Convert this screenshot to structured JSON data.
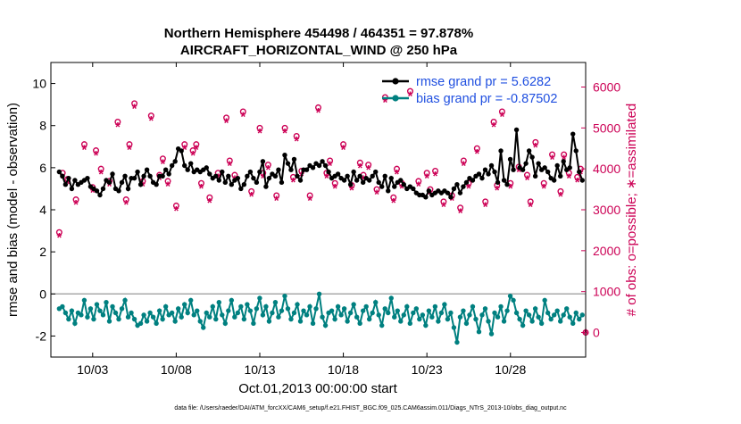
{
  "chart_data": {
    "type": "line",
    "title_line1": "Northern Hemisphere 454498 / 464351 = 97.878%",
    "title_line2": "AIRCRAFT_HORIZONTAL_WIND @ 250 hPa",
    "xlabel": "Oct.01,2013 00:00:00 start",
    "ylabel_left": "rmse and bias (model - observation)",
    "ylabel_right": "# of obs: o=possible; ∗=assimilated",
    "footer": "data file: /Users/raeder/DAI/ATM_forcXX/CAM6_setup/f.e21.FHIST_BGC.f09_025.CAM6assim.011/Diags_NTrS_2013-10/obs_diag_output.nc",
    "xlim": [
      0.5,
      32.5
    ],
    "ylim_left": [
      -3,
      11
    ],
    "ylim_right": [
      -600,
      6600
    ],
    "x_ticks": [
      3,
      8,
      13,
      18,
      23,
      28
    ],
    "x_tick_labels": [
      "10/03",
      "10/08",
      "10/13",
      "10/18",
      "10/23",
      "10/28"
    ],
    "y_left_ticks": [
      -2,
      0,
      2,
      4,
      6,
      8,
      10
    ],
    "y_right_ticks": [
      0,
      1000,
      2000,
      3000,
      4000,
      5000,
      6000
    ],
    "zero_line": 0,
    "colors": {
      "rmse": "#000000",
      "bias": "#008080",
      "obs": "#cc0055",
      "legend_text": "#1f4fe0",
      "zero_line": "#aaaaaa"
    },
    "legend": [
      {
        "name": "rmse grand pr = 5.6282",
        "series": "rmse"
      },
      {
        "name": "bias grand pr = -0.87502",
        "series": "bias"
      }
    ],
    "series": [
      {
        "name": "rmse",
        "values": [
          5.8,
          5.6,
          5.2,
          5.5,
          5.0,
          5.4,
          5.2,
          5.3,
          5.4,
          5.5,
          5.1,
          5.0,
          4.9,
          4.7,
          5.0,
          5.4,
          5.3,
          5.7,
          5.0,
          4.9,
          5.3,
          5.6,
          5.0,
          5.5,
          5.5,
          5.8,
          5.2,
          5.6,
          5.9,
          5.6,
          5.3,
          5.2,
          5.6,
          5.6,
          5.9,
          5.7,
          6.1,
          6.3,
          6.9,
          6.8,
          6.1,
          5.9,
          6.2,
          5.8,
          5.9,
          5.8,
          5.9,
          6.0,
          5.7,
          5.5,
          5.6,
          5.4,
          5.8,
          5.3,
          5.6,
          5.2,
          5.4,
          5.5,
          5.0,
          5.2,
          5.6,
          5.8,
          5.5,
          5.3,
          5.8,
          6.3,
          5.1,
          5.5,
          5.7,
          5.6,
          5.9,
          5.3,
          6.6,
          6.2,
          5.9,
          6.4,
          5.6,
          5.4,
          5.9,
          5.9,
          6.1,
          6.0,
          6.2,
          6.1,
          6.3,
          6.1,
          5.8,
          5.5,
          5.6,
          5.7,
          5.5,
          5.4,
          5.6,
          5.2,
          5.8,
          5.4,
          5.6,
          5.3,
          5.5,
          5.4,
          5.6,
          5.8,
          5.3,
          5.1,
          5.6,
          4.9,
          5.5,
          5.1,
          5.3,
          5.4,
          5.2,
          5.0,
          5.1,
          5.0,
          4.8,
          4.7,
          4.7,
          4.6,
          4.9,
          4.7,
          4.8,
          4.9,
          4.8,
          4.9,
          4.8,
          4.6,
          5.0,
          5.2,
          4.8,
          5.1,
          5.3,
          5.5,
          5.4,
          5.6,
          5.7,
          5.5,
          5.9,
          5.7,
          6.1,
          5.8,
          5.3,
          6.8,
          5.4,
          5.2,
          6.4,
          5.9,
          7.8,
          6.0,
          5.9,
          6.2,
          6.8,
          6.5,
          5.6,
          6.2,
          5.9,
          6.0,
          5.8,
          5.5,
          5.4,
          6.1,
          5.6,
          6.3,
          5.9,
          6.0,
          7.6,
          6.8,
          5.8,
          5.4
        ],
        "bias": []
      },
      {
        "name": "bias",
        "values": [
          -0.7,
          -0.6,
          -0.9,
          -1.2,
          -0.8,
          -1.4,
          -0.9,
          -1.0,
          -0.3,
          -1.1,
          -0.7,
          -1.2,
          -0.5,
          -0.8,
          -1.0,
          -0.4,
          -1.3,
          -0.6,
          -0.9,
          -1.2,
          -0.7,
          -0.3,
          -1.1,
          -0.9,
          -1.2,
          -1.5,
          -1.4,
          -1.0,
          -1.3,
          -0.9,
          -1.1,
          -1.4,
          -0.8,
          -1.2,
          -0.6,
          -1.0,
          -0.9,
          -1.3,
          -0.7,
          -1.1,
          -0.5,
          -0.9,
          -0.3,
          -1.0,
          -0.8,
          -1.3,
          -1.6,
          -0.9,
          -1.1,
          -0.6,
          -1.2,
          -0.4,
          -1.0,
          -1.4,
          -0.8,
          -0.3,
          -1.1,
          -0.9,
          -0.6,
          -1.2,
          -0.5,
          -0.8,
          -1.4,
          -0.7,
          -0.2,
          -1.0,
          -0.6,
          -1.3,
          -0.9,
          -0.4,
          -1.1,
          -0.8,
          -0.1,
          -0.7,
          -1.2,
          -0.9,
          -0.5,
          -1.3,
          -0.8,
          -1.0,
          -0.6,
          -1.4,
          -0.7,
          0.0,
          -1.1,
          -1.5,
          -0.9,
          -0.8,
          -1.2,
          -0.6,
          -1.0,
          -0.7,
          -1.3,
          -0.9,
          -0.5,
          -1.1,
          -1.4,
          -0.8,
          -0.6,
          -1.2,
          -0.9,
          -0.4,
          -1.0,
          -1.5,
          -0.7,
          -0.9,
          -0.2,
          -1.1,
          -0.8,
          -1.3,
          -1.0,
          -0.6,
          -1.4,
          -0.9,
          -0.7,
          -1.2,
          -1.0,
          -1.5,
          -0.8,
          -1.1,
          -0.6,
          -1.3,
          -0.9,
          -0.5,
          -1.2,
          -0.9,
          -1.6,
          -2.3,
          -1.1,
          -0.8,
          -1.4,
          -1.0,
          -0.6,
          -1.2,
          -1.8,
          -1.0,
          -0.7,
          -1.3,
          -1.9,
          -0.9,
          -1.1,
          -0.6,
          -1.3,
          -0.8,
          -0.1,
          -0.3,
          -0.9,
          -1.2,
          -1.5,
          -0.8,
          -1.0,
          -1.3,
          -0.7,
          -1.1,
          -1.4,
          -0.3,
          -0.9,
          -1.2,
          -1.0,
          -0.8,
          -1.3,
          -1.0,
          -0.7,
          -1.1,
          -1.4,
          -0.9,
          -1.2,
          -1.0
        ]
      }
    ],
    "obs_possible": {
      "x": [
        1.0,
        1.2,
        1.5,
        2.0,
        2.5,
        3.0,
        3.2,
        3.5,
        4.0,
        4.5,
        5.0,
        5.2,
        5.5,
        6.0,
        6.5,
        7.0,
        7.2,
        7.5,
        8.0,
        8.5,
        9.0,
        9.2,
        9.5,
        10.0,
        10.5,
        11.0,
        11.2,
        11.5,
        12.0,
        12.5,
        13.0,
        13.2,
        13.5,
        14.0,
        14.5,
        15.0,
        15.2,
        15.5,
        16.0,
        16.5,
        17.0,
        17.2,
        17.5,
        18.0,
        18.5,
        19.0,
        19.2,
        19.5,
        20.0,
        20.5,
        21.0,
        21.2,
        21.5,
        22.0,
        22.5,
        23.0,
        23.2,
        23.5,
        24.0,
        24.5,
        25.0,
        25.2,
        25.5,
        26.0,
        26.5,
        27.0,
        27.2,
        27.5,
        28.0,
        28.5,
        29.0,
        29.2,
        29.5,
        30.0,
        30.5,
        31.0,
        31.2,
        31.5,
        32.0,
        32.2
      ],
      "y": [
        2450,
        3900,
        3750,
        3250,
        4600,
        3550,
        4450,
        4000,
        3700,
        5150,
        3250,
        4600,
        5600,
        3700,
        5300,
        3850,
        4250,
        3700,
        3100,
        4600,
        4450,
        4600,
        3650,
        3300,
        3900,
        5250,
        4200,
        3850,
        5400,
        3450,
        5000,
        3900,
        4100,
        3350,
        5000,
        3800,
        4800,
        3950,
        3350,
        5500,
        3900,
        4200,
        3650,
        4600,
        3600,
        4150,
        3850,
        4100,
        3500,
        5750,
        3300,
        4000,
        3650,
        5900,
        3700,
        3900,
        3500,
        3950,
        3200,
        3350,
        3050,
        4200,
        3650,
        4500,
        3200,
        5150,
        3600,
        5400,
        3650,
        4050,
        3850,
        3200,
        4650,
        3650,
        4350,
        3450,
        4350,
        3900,
        3800,
        4000
      ]
    },
    "obs_assimilated": {
      "x": [
        1.0,
        1.2,
        1.5,
        2.0,
        2.5,
        3.0,
        3.2,
        3.5,
        4.0,
        4.5,
        5.0,
        5.2,
        5.5,
        6.0,
        6.5,
        7.0,
        7.2,
        7.5,
        8.0,
        8.5,
        9.0,
        9.2,
        9.5,
        10.0,
        10.5,
        11.0,
        11.2,
        11.5,
        12.0,
        12.5,
        13.0,
        13.2,
        13.5,
        14.0,
        14.5,
        15.0,
        15.2,
        15.5,
        16.0,
        16.5,
        17.0,
        17.2,
        17.5,
        18.0,
        18.5,
        19.0,
        19.2,
        19.5,
        20.0,
        20.5,
        21.0,
        21.2,
        21.5,
        22.0,
        22.5,
        23.0,
        23.2,
        23.5,
        24.0,
        24.5,
        25.0,
        25.2,
        25.5,
        26.0,
        26.5,
        27.0,
        27.2,
        27.5,
        28.0,
        28.5,
        29.0,
        29.2,
        29.5,
        30.0,
        30.5,
        31.0,
        31.2,
        31.5,
        32.0,
        32.2
      ],
      "y": [
        2350,
        3800,
        3650,
        3150,
        4500,
        3450,
        4350,
        3900,
        3600,
        5050,
        3150,
        4500,
        5500,
        3600,
        5200,
        3750,
        4150,
        3600,
        3000,
        4500,
        4350,
        4500,
        3550,
        3200,
        3800,
        5150,
        4100,
        3750,
        5300,
        3350,
        4900,
        3800,
        4000,
        3250,
        4900,
        3700,
        4700,
        3850,
        3250,
        5400,
        3800,
        4100,
        3550,
        4500,
        3500,
        4050,
        3750,
        4000,
        3400,
        5650,
        3200,
        3900,
        3550,
        5800,
        3600,
        3800,
        3400,
        3850,
        3100,
        3250,
        2950,
        4100,
        3550,
        4400,
        3100,
        5050,
        3500,
        5300,
        3550,
        3950,
        3750,
        3100,
        4550,
        3550,
        4250,
        3350,
        4250,
        3800,
        3700,
        3900
      ]
    },
    "obs_zero_point": {
      "x": 32.5,
      "y": 0
    }
  }
}
